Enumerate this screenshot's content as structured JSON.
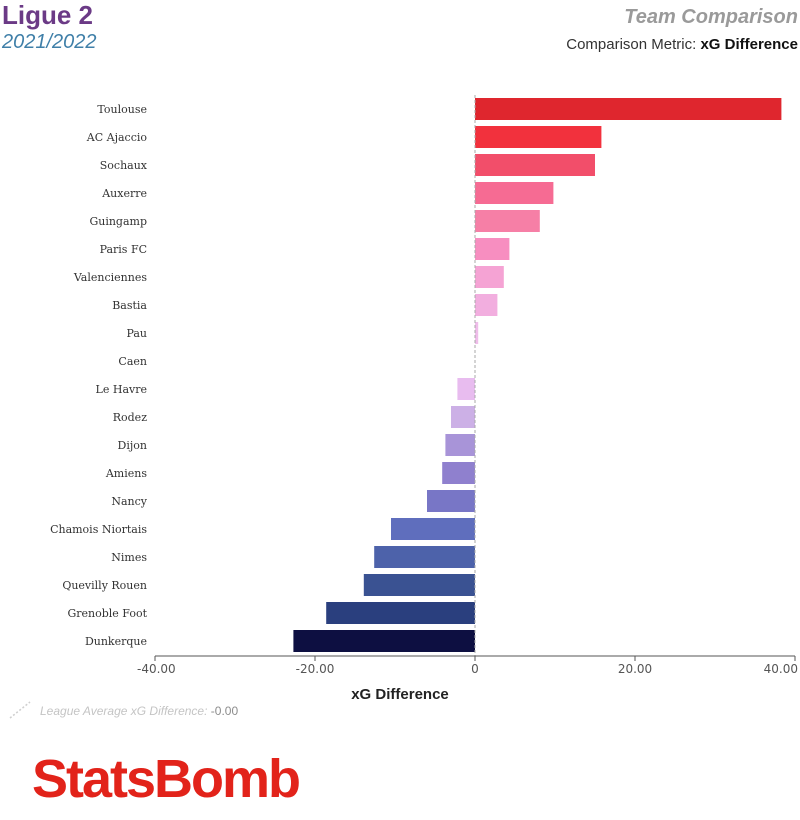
{
  "header": {
    "league": "Ligue 2",
    "season": "2021/2022",
    "report_title": "Team Comparison",
    "metric_label": "Comparison Metric:",
    "metric_value": "xG Difference"
  },
  "chart_data": {
    "type": "bar",
    "orientation": "horizontal",
    "xlabel": "xG Difference",
    "xlim": [
      -40,
      40
    ],
    "xticks": [
      -40,
      -20,
      0,
      20,
      40
    ],
    "xtick_labels": [
      "-40.00",
      "-20.00",
      "0",
      "20.00",
      "40.00"
    ],
    "grid": false,
    "reference_line": {
      "value": 0
    },
    "categories": [
      "Toulouse",
      "AC Ajaccio",
      "Sochaux",
      "Auxerre",
      "Guingamp",
      "Paris FC",
      "Valenciennes",
      "Bastia",
      "Pau",
      "Caen",
      "Le Havre",
      "Rodez",
      "Dijon",
      "Amiens",
      "Nancy",
      "Chamois Niortais",
      "Nimes",
      "Quevilly Rouen",
      "Grenoble Foot",
      "Dunkerque"
    ],
    "values": [
      38.3,
      15.8,
      15.0,
      9.8,
      8.1,
      4.3,
      3.6,
      2.8,
      0.4,
      0.0,
      -2.2,
      -3.0,
      -3.7,
      -4.1,
      -6.0,
      -10.5,
      -12.6,
      -13.9,
      -18.6,
      -22.7
    ],
    "colors": [
      "#df262e",
      "#f2313d",
      "#f24e6a",
      "#f66b93",
      "#f67fa6",
      "#f78ec0",
      "#f5a3d4",
      "#f2aedf",
      "#efbdea",
      "#eec3ee",
      "#e8bcef",
      "#ccb0e6",
      "#a894d8",
      "#8f80ce",
      "#7876c6",
      "#5f6ebd",
      "#4d62aa",
      "#3a5292",
      "#2a3f7e",
      "#0d0f41"
    ]
  },
  "footnote": {
    "label": "League Average xG Difference:",
    "value": "-0.00"
  },
  "brand": "StatsBomb"
}
